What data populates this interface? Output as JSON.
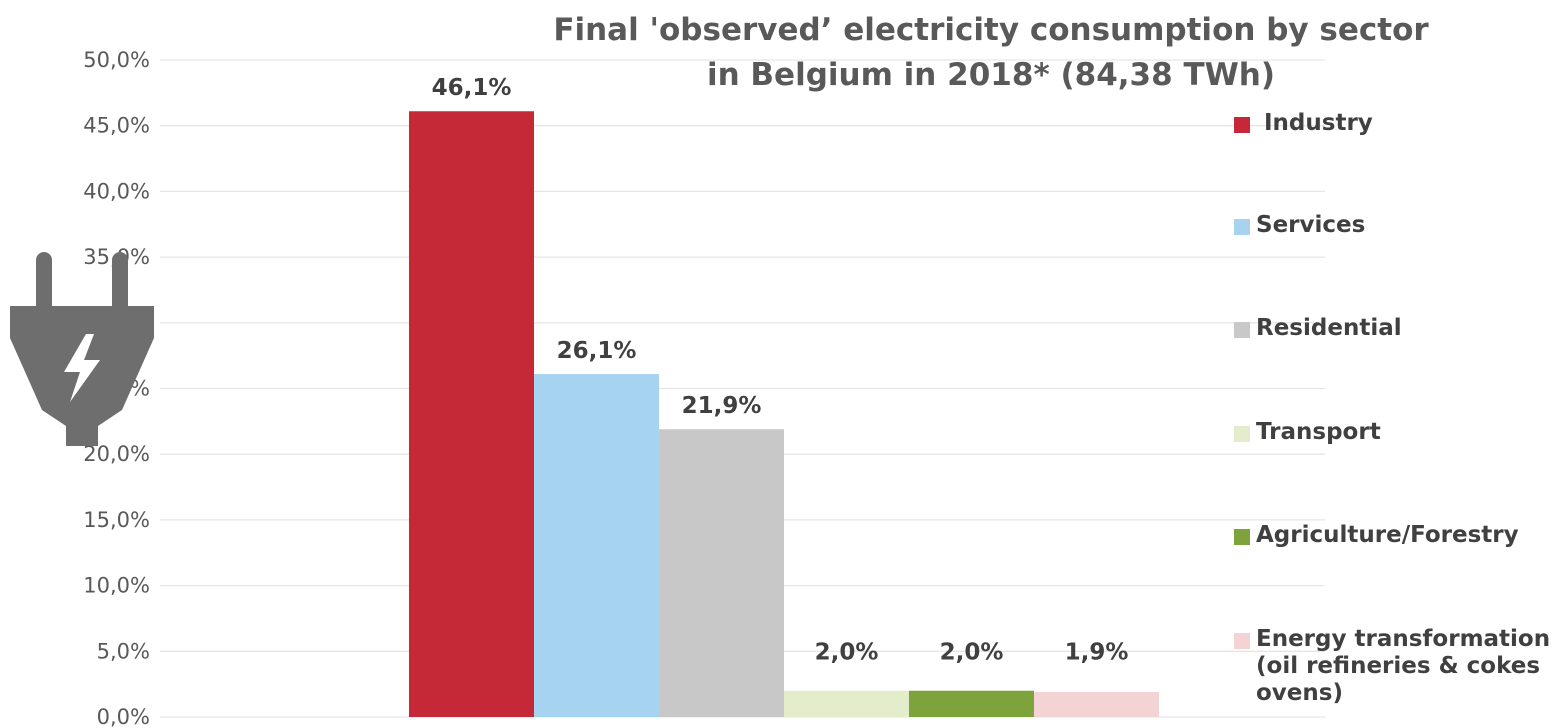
{
  "chart_data": {
    "type": "bar",
    "title_lines": [
      "Final 'observed’ electricity consumption by sector",
      "in Belgium in 2018* (84,38 TWh)"
    ],
    "xlabel": "",
    "ylabel": "",
    "ylim": [
      0,
      50
    ],
    "yticks": [
      "0,0%",
      "5,0%",
      "10,0%",
      "15,0%",
      "20,0%",
      "25,0%",
      "30,0%",
      "35,0%",
      "40,0%",
      "45,0%",
      "50,0%"
    ],
    "grid": true,
    "legend_position": "right",
    "series": [
      {
        "name": "Industry",
        "value": 46.1,
        "label": "46,1%",
        "color": "#C52938"
      },
      {
        "name": "Services",
        "value": 26.1,
        "label": "26,1%",
        "color": "#A6D3F0"
      },
      {
        "name": "Residential",
        "value": 21.9,
        "label": "21,9%",
        "color": "#C8C8C8"
      },
      {
        "name": "Transport",
        "value": 2.0,
        "label": "2,0%",
        "color": "#E3EDCB"
      },
      {
        "name": "Agriculture/Forestry",
        "value": 2.0,
        "label": "2,0%",
        "color": "#7FA33C"
      },
      {
        "name": "Energy transformation\n(oil refineries & cokes\novens)",
        "value": 1.9,
        "label": "1,9%",
        "color": "#F3D3D4"
      }
    ]
  },
  "decoration": {
    "icon": "electric-plug-icon",
    "icon_color": "#6E6E6E"
  }
}
